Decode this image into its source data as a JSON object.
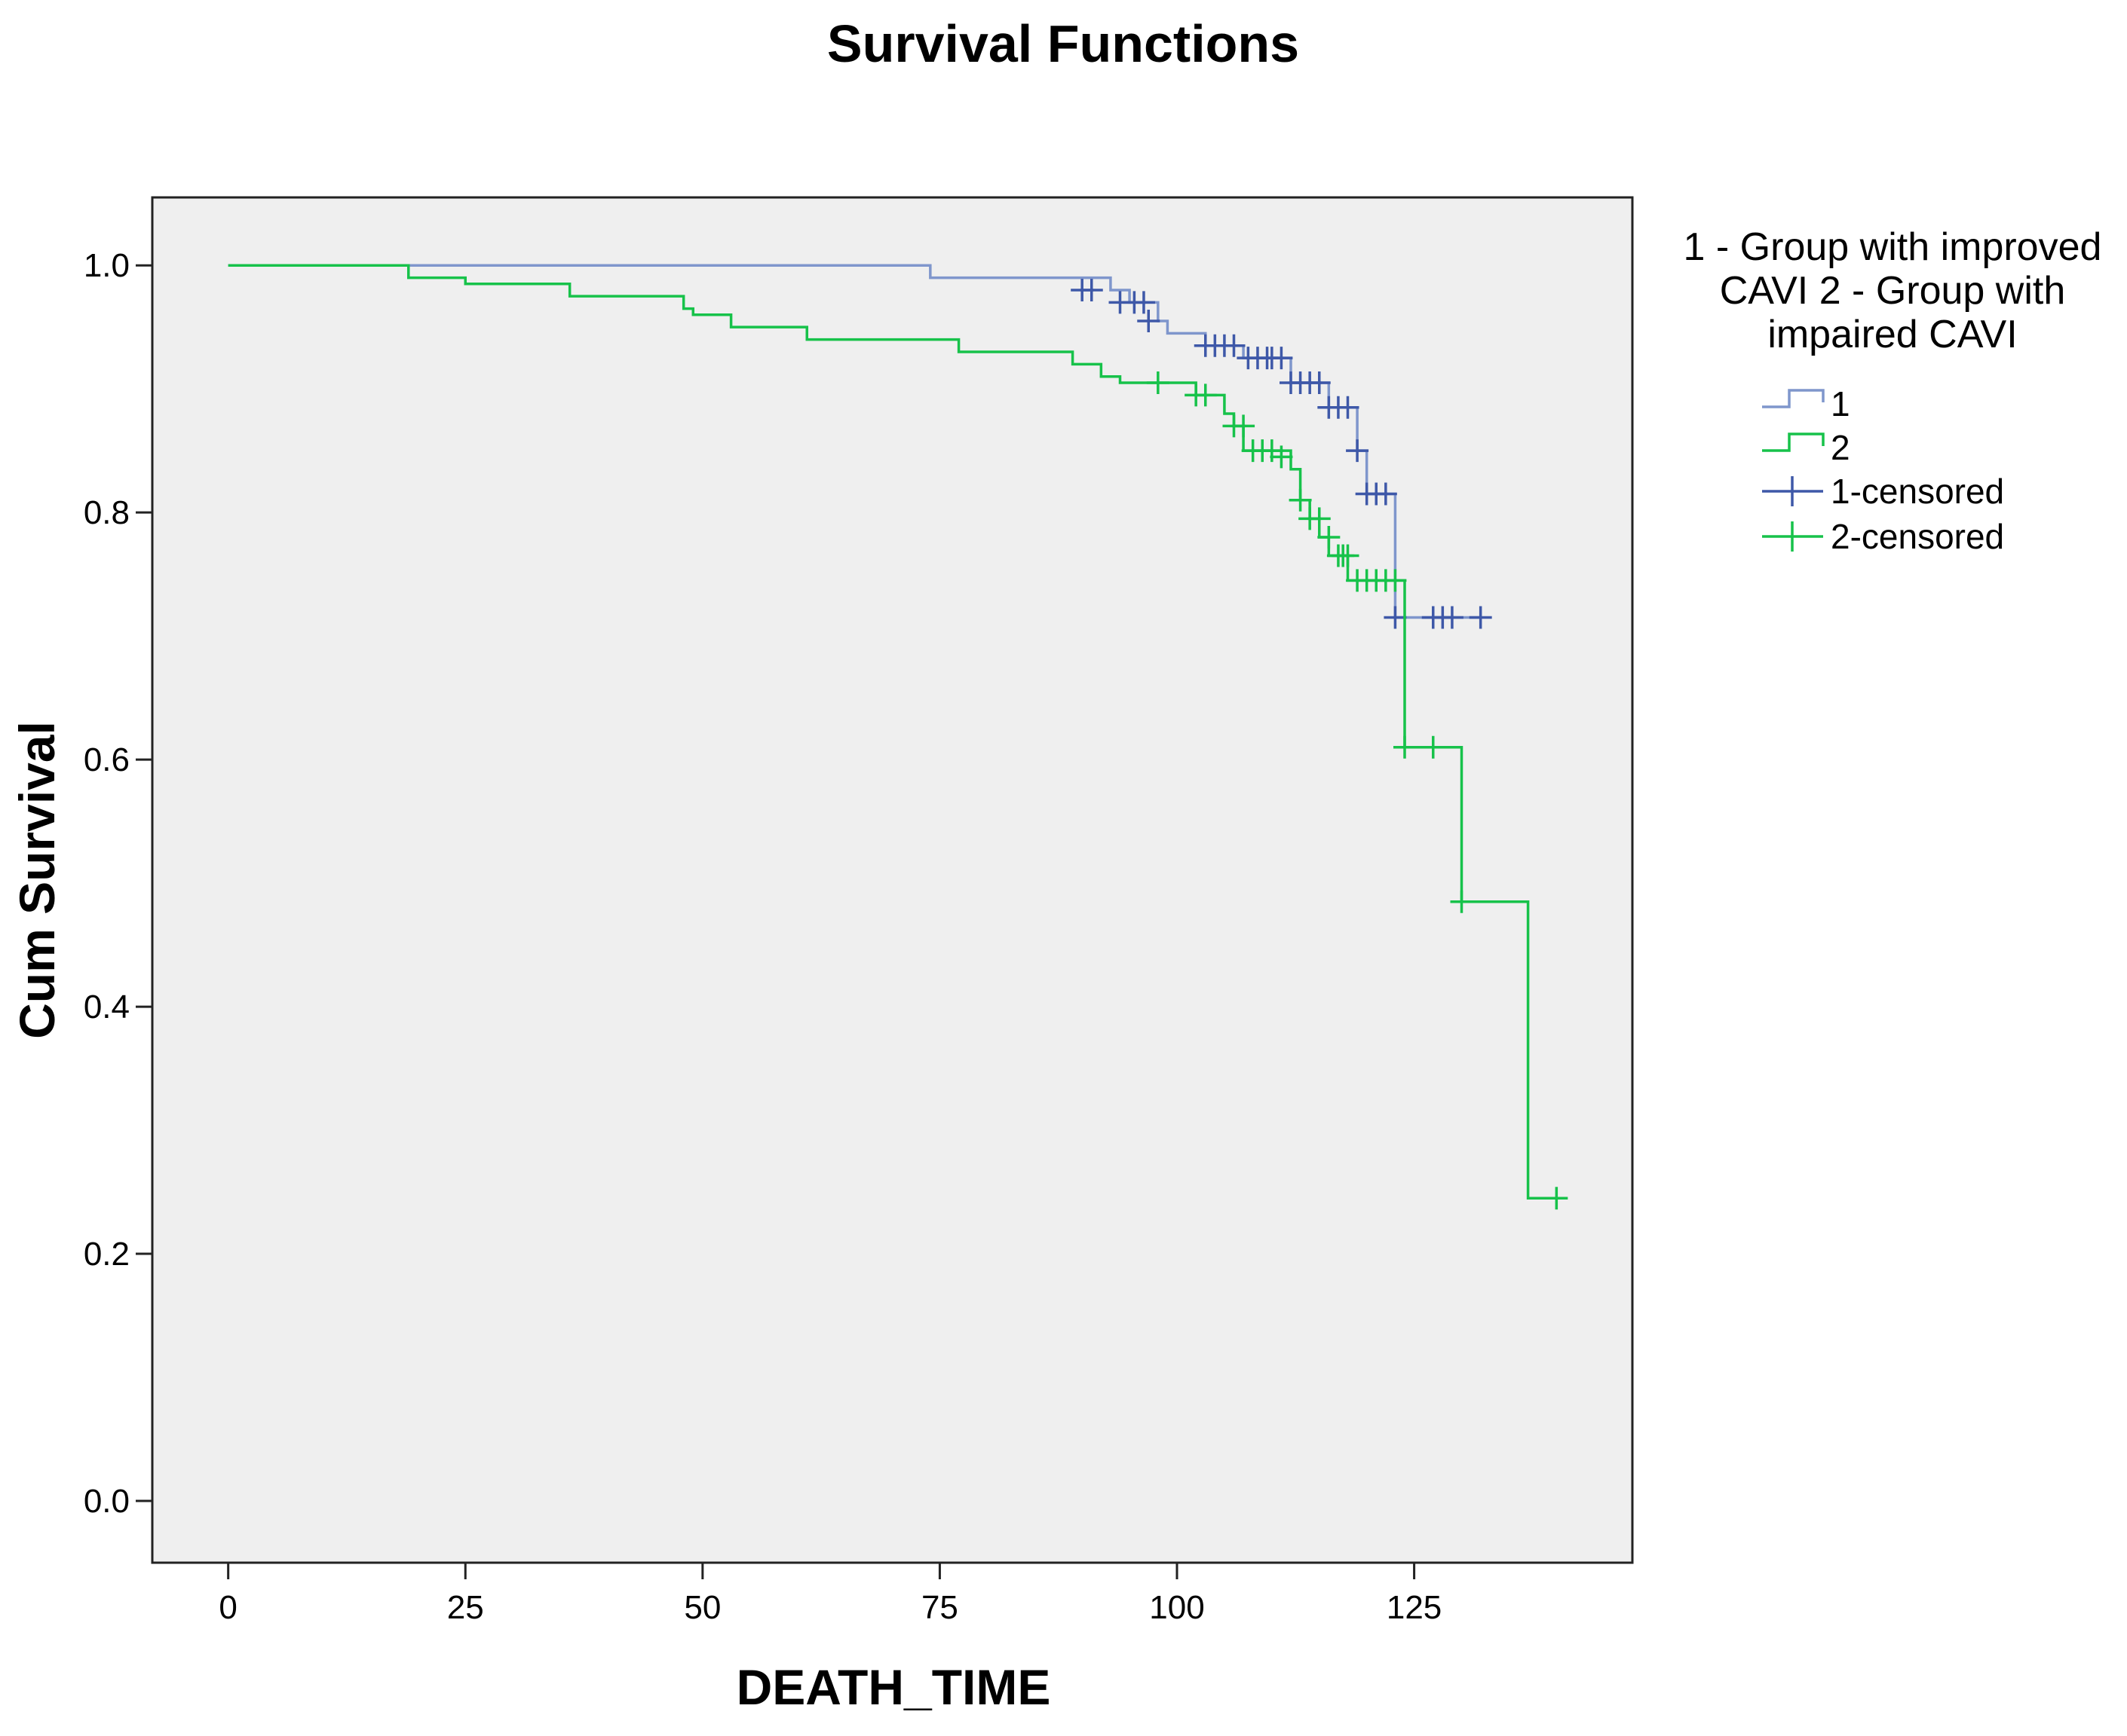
{
  "chart_data": {
    "type": "line",
    "subtype": "kaplan-meier-step",
    "title": "Survival Functions",
    "xlabel": "DEATH_TIME",
    "ylabel": "Cum Survival",
    "xlim": [
      -8,
      148
    ],
    "ylim": [
      -0.05,
      1.055
    ],
    "xticks": [
      0,
      25,
      50,
      75,
      100,
      125
    ],
    "xtick_labels": [
      "0",
      "25",
      "50",
      "75",
      "100",
      "125"
    ],
    "yticks": [
      0.0,
      0.2,
      0.4,
      0.6,
      0.8,
      1.0
    ],
    "ytick_labels": [
      "0.0",
      "0.2",
      "0.4",
      "0.6",
      "0.8",
      "1.0"
    ],
    "grid": false,
    "background": "#efefef",
    "legend": {
      "position": "right",
      "title_lines": [
        "1 - Group with improved",
        "CAVI   2 - Group with",
        "impaired CAVI"
      ],
      "entries": [
        {
          "label": "1",
          "kind": "line",
          "color": "#7f96cc"
        },
        {
          "label": "2",
          "kind": "line",
          "color": "#17c24a"
        },
        {
          "label": "1-censored",
          "kind": "censor",
          "color": "#3e58a8"
        },
        {
          "label": "2-censored",
          "kind": "censor",
          "color": "#17c24a"
        }
      ]
    },
    "series": [
      {
        "name": "1",
        "line_color": "#7f96cc",
        "censor_color": "#3e58a8",
        "steps": [
          [
            0,
            1.0
          ],
          [
            74,
            0.99
          ],
          [
            93,
            0.98
          ],
          [
            95,
            0.97
          ],
          [
            98,
            0.955
          ],
          [
            99,
            0.945
          ],
          [
            103,
            0.935
          ],
          [
            107,
            0.925
          ],
          [
            112,
            0.905
          ],
          [
            116,
            0.885
          ],
          [
            119,
            0.85
          ],
          [
            120,
            0.815
          ],
          [
            123,
            0.715
          ],
          [
            132,
            0.715
          ]
        ],
        "censored": [
          [
            90,
            0.98
          ],
          [
            91,
            0.98
          ],
          [
            94,
            0.97
          ],
          [
            95.5,
            0.97
          ],
          [
            96.5,
            0.97
          ],
          [
            97,
            0.955
          ],
          [
            103,
            0.935
          ],
          [
            104,
            0.935
          ],
          [
            105,
            0.935
          ],
          [
            106,
            0.935
          ],
          [
            107.5,
            0.925
          ],
          [
            108.5,
            0.925
          ],
          [
            109.5,
            0.925
          ],
          [
            110,
            0.925
          ],
          [
            111,
            0.925
          ],
          [
            112,
            0.905
          ],
          [
            113,
            0.905
          ],
          [
            114,
            0.905
          ],
          [
            115,
            0.905
          ],
          [
            116,
            0.885
          ],
          [
            117,
            0.885
          ],
          [
            118,
            0.885
          ],
          [
            119,
            0.85
          ],
          [
            120,
            0.815
          ],
          [
            121,
            0.815
          ],
          [
            122,
            0.815
          ],
          [
            123,
            0.715
          ],
          [
            127,
            0.715
          ],
          [
            128,
            0.715
          ],
          [
            129,
            0.715
          ],
          [
            132,
            0.715
          ]
        ]
      },
      {
        "name": "2",
        "line_color": "#17c24a",
        "censor_color": "#17c24a",
        "steps": [
          [
            0,
            1.0
          ],
          [
            19,
            0.99
          ],
          [
            25,
            0.985
          ],
          [
            36,
            0.975
          ],
          [
            48,
            0.965
          ],
          [
            49,
            0.96
          ],
          [
            53,
            0.95
          ],
          [
            61,
            0.94
          ],
          [
            77,
            0.93
          ],
          [
            89,
            0.92
          ],
          [
            92,
            0.91
          ],
          [
            94,
            0.905
          ],
          [
            102,
            0.895
          ],
          [
            105,
            0.88
          ],
          [
            106,
            0.87
          ],
          [
            107,
            0.85
          ],
          [
            112,
            0.835
          ],
          [
            113,
            0.81
          ],
          [
            114,
            0.795
          ],
          [
            115,
            0.78
          ],
          [
            116,
            0.765
          ],
          [
            118,
            0.745
          ],
          [
            124,
            0.61
          ],
          [
            130,
            0.485
          ],
          [
            137,
            0.245
          ],
          [
            140,
            0.245
          ]
        ],
        "censored": [
          [
            98,
            0.905
          ],
          [
            102,
            0.895
          ],
          [
            103,
            0.895
          ],
          [
            106,
            0.87
          ],
          [
            107,
            0.87
          ],
          [
            108,
            0.85
          ],
          [
            109,
            0.85
          ],
          [
            110,
            0.85
          ],
          [
            111,
            0.845
          ],
          [
            113,
            0.81
          ],
          [
            114,
            0.795
          ],
          [
            115,
            0.795
          ],
          [
            116,
            0.78
          ],
          [
            117,
            0.765
          ],
          [
            117.5,
            0.765
          ],
          [
            118,
            0.765
          ],
          [
            119,
            0.745
          ],
          [
            120,
            0.745
          ],
          [
            121,
            0.745
          ],
          [
            122,
            0.745
          ],
          [
            123,
            0.745
          ],
          [
            124,
            0.61
          ],
          [
            127,
            0.61
          ],
          [
            130,
            0.485
          ],
          [
            140,
            0.245
          ]
        ]
      }
    ]
  }
}
